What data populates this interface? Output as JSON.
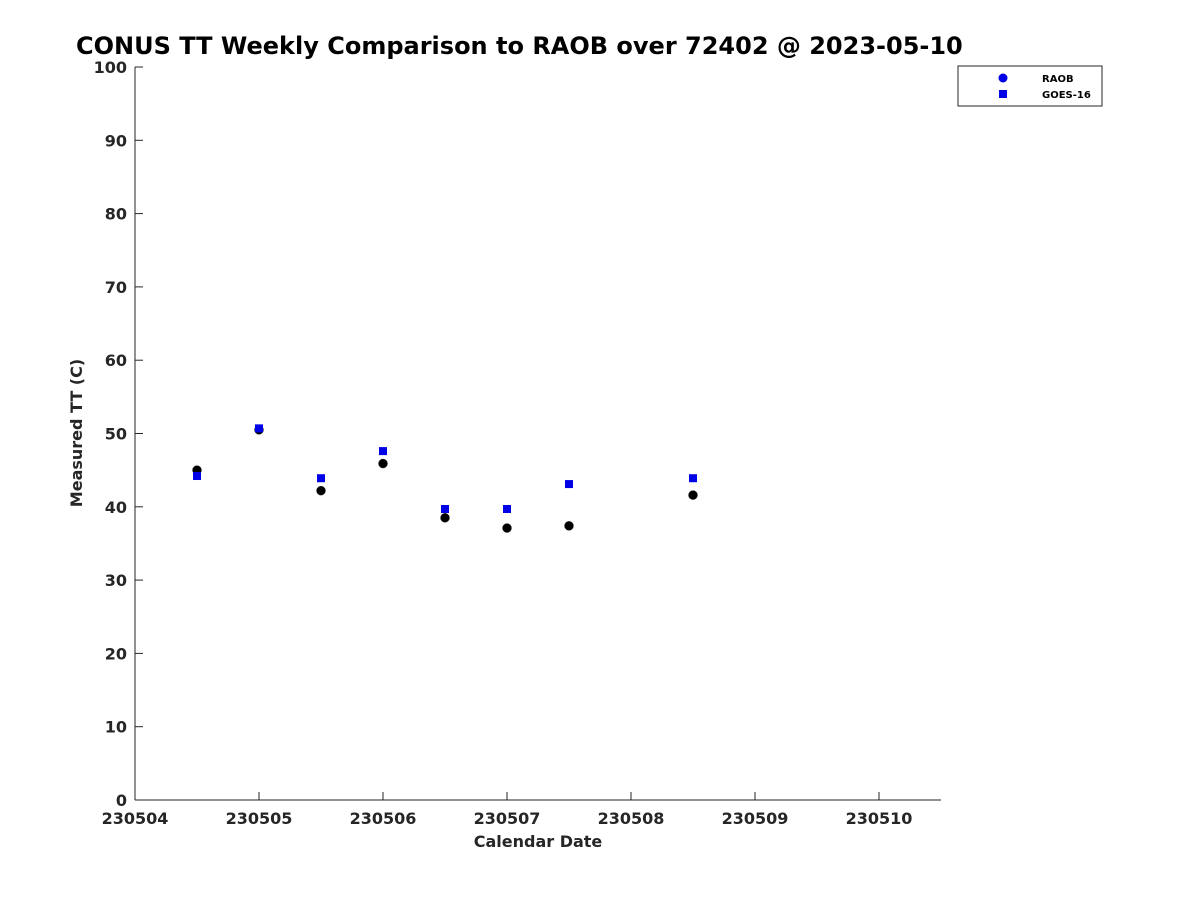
{
  "chart_data": {
    "type": "scatter",
    "title": "CONUS TT Weekly Comparison to RAOB over 72402 @ 2023-05-10",
    "xlabel": "Calendar Date",
    "ylabel": "Measured TT (C)",
    "x_tick_labels": [
      "230504",
      "230505",
      "230506",
      "230507",
      "230508",
      "230509",
      "230510"
    ],
    "x_tick_values": [
      0,
      1,
      2,
      3,
      4,
      5,
      6
    ],
    "xlim": [
      0,
      6.5
    ],
    "y_ticks": [
      0,
      10,
      20,
      30,
      40,
      50,
      60,
      70,
      80,
      90,
      100
    ],
    "ylim": [
      0,
      100
    ],
    "grid": false,
    "legend_position": "top-right",
    "series": [
      {
        "name": "RAOB",
        "marker": "circle",
        "color": "#000000",
        "legend_color": "#0000e6",
        "x": [
          0.5,
          1.0,
          1.5,
          2.0,
          2.5,
          3.0,
          3.5,
          4.5
        ],
        "y": [
          45.0,
          50.5,
          42.2,
          45.9,
          38.5,
          37.1,
          37.4,
          41.6
        ]
      },
      {
        "name": "GOES-16",
        "marker": "square",
        "color": "#0000e6",
        "legend_color": "#0000e6",
        "x": [
          0.5,
          1.0,
          1.5,
          2.0,
          2.5,
          3.0,
          3.5,
          4.5
        ],
        "y": [
          44.2,
          50.7,
          43.9,
          47.6,
          39.7,
          39.7,
          43.1,
          43.9
        ]
      }
    ]
  }
}
